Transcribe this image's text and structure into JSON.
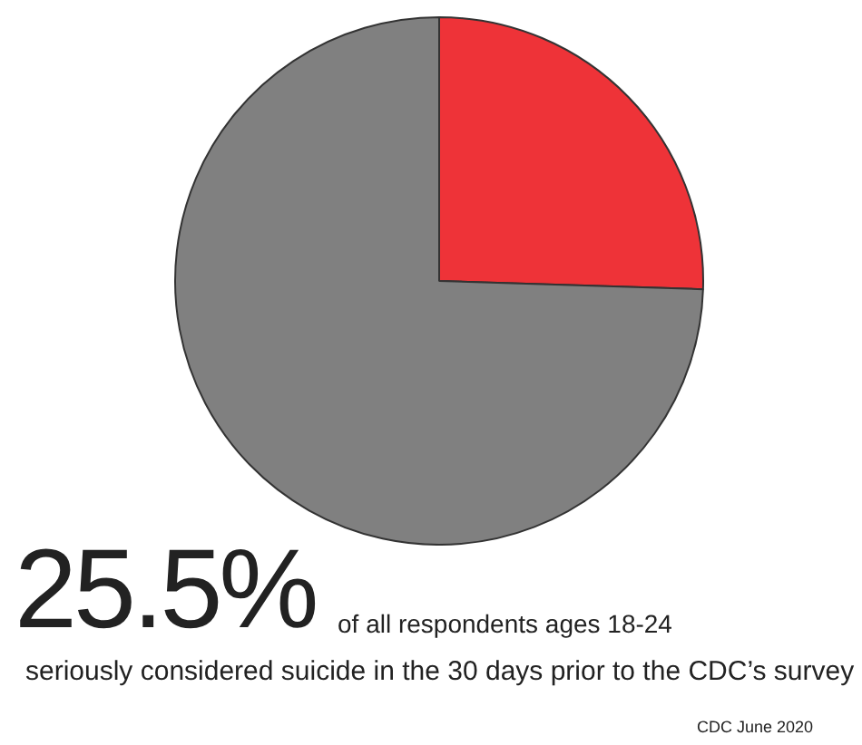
{
  "chart_data": {
    "type": "pie",
    "categories": [
      null,
      null
    ],
    "values": [
      25.5,
      74.5
    ],
    "colors": [
      "#ee3338",
      "#808080"
    ],
    "legend": false,
    "annotations": [
      "25.5%",
      "of all respondents ages 18-24",
      "seriously considered suicide in the 30 days prior to the CDC’s survey",
      "CDC June 2020"
    ]
  }
}
